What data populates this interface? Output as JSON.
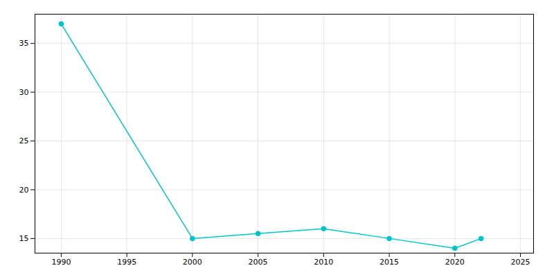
{
  "chart_data": {
    "type": "line",
    "x": [
      1990,
      2000,
      2005,
      2010,
      2015,
      2020,
      2022
    ],
    "values": [
      37,
      15,
      15.5,
      16,
      15,
      14,
      15
    ],
    "color": "#00C5C8",
    "marker": "circle",
    "xlim": [
      1988,
      2026
    ],
    "ylim": [
      13.5,
      38
    ],
    "xticks": [
      1990,
      1995,
      2000,
      2005,
      2010,
      2015,
      2020,
      2025
    ],
    "yticks": [
      15,
      20,
      25,
      30,
      35
    ],
    "grid": true
  }
}
